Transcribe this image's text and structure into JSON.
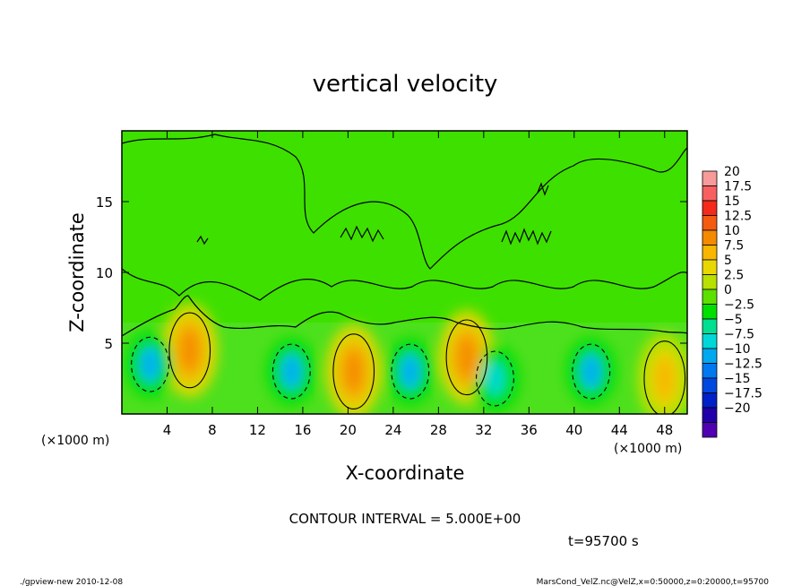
{
  "chart_data": {
    "type": "heatmap",
    "title": "vertical velocity",
    "xlabel": "X-coordinate",
    "ylabel": "Z-coordinate",
    "x_unit": "(×1000 m)",
    "y_unit": "(×1000 m)",
    "xlim": [
      0,
      50
    ],
    "ylim": [
      0,
      20
    ],
    "x_ticks": [
      "4",
      "8",
      "12",
      "16",
      "20",
      "24",
      "28",
      "32",
      "36",
      "40",
      "44",
      "48"
    ],
    "x_tick_values": [
      4,
      8,
      12,
      16,
      20,
      24,
      28,
      32,
      36,
      40,
      44,
      48
    ],
    "y_ticks": [
      "5",
      "10",
      "15"
    ],
    "y_tick_values": [
      5,
      10,
      15
    ],
    "colorbar_labels": [
      "20",
      "17.5",
      "15",
      "12.5",
      "10",
      "7.5",
      "5",
      "2.5",
      "0",
      "−2.5",
      "−5",
      "−7.5",
      "−10",
      "−12.5",
      "−15",
      "−17.5",
      "−20"
    ],
    "colorbar_colors": [
      "#f79a9a",
      "#f86060",
      "#f42a1a",
      "#f45a10",
      "#f58a00",
      "#f8b600",
      "#e8d800",
      "#b8e000",
      "#5ce000",
      "#00e000",
      "#00e090",
      "#00d8d8",
      "#00a8f0",
      "#0078f0",
      "#0048e0",
      "#0020c8",
      "#2000a8",
      "#5000b0"
    ],
    "contour_interval": "CONTOUR INTERVAL = 5.000E+00",
    "time_label": "t=95700 s",
    "footer_left": "./gpview-new  2010-12-08",
    "footer_right": "MarsCond_VelZ.nc@VelZ,x=0:50000,z=0:20000,t=95700",
    "updrafts": [
      {
        "x": 6,
        "z": 4.5,
        "peak": 7.5
      },
      {
        "x": 20.5,
        "z": 3.0,
        "peak": 7.5
      },
      {
        "x": 30.5,
        "z": 4.0,
        "peak": 7.5
      },
      {
        "x": 48,
        "z": 2.5,
        "peak": 5
      }
    ],
    "downdrafts": [
      {
        "x": 2.5,
        "z": 3.5,
        "peak": -7.5
      },
      {
        "x": 15,
        "z": 3.0,
        "peak": -7.5
      },
      {
        "x": 25.5,
        "z": 3.0,
        "peak": -7.5
      },
      {
        "x": 33,
        "z": 2.5,
        "peak": -5
      },
      {
        "x": 41.5,
        "z": 3.0,
        "peak": -7.5
      }
    ]
  }
}
